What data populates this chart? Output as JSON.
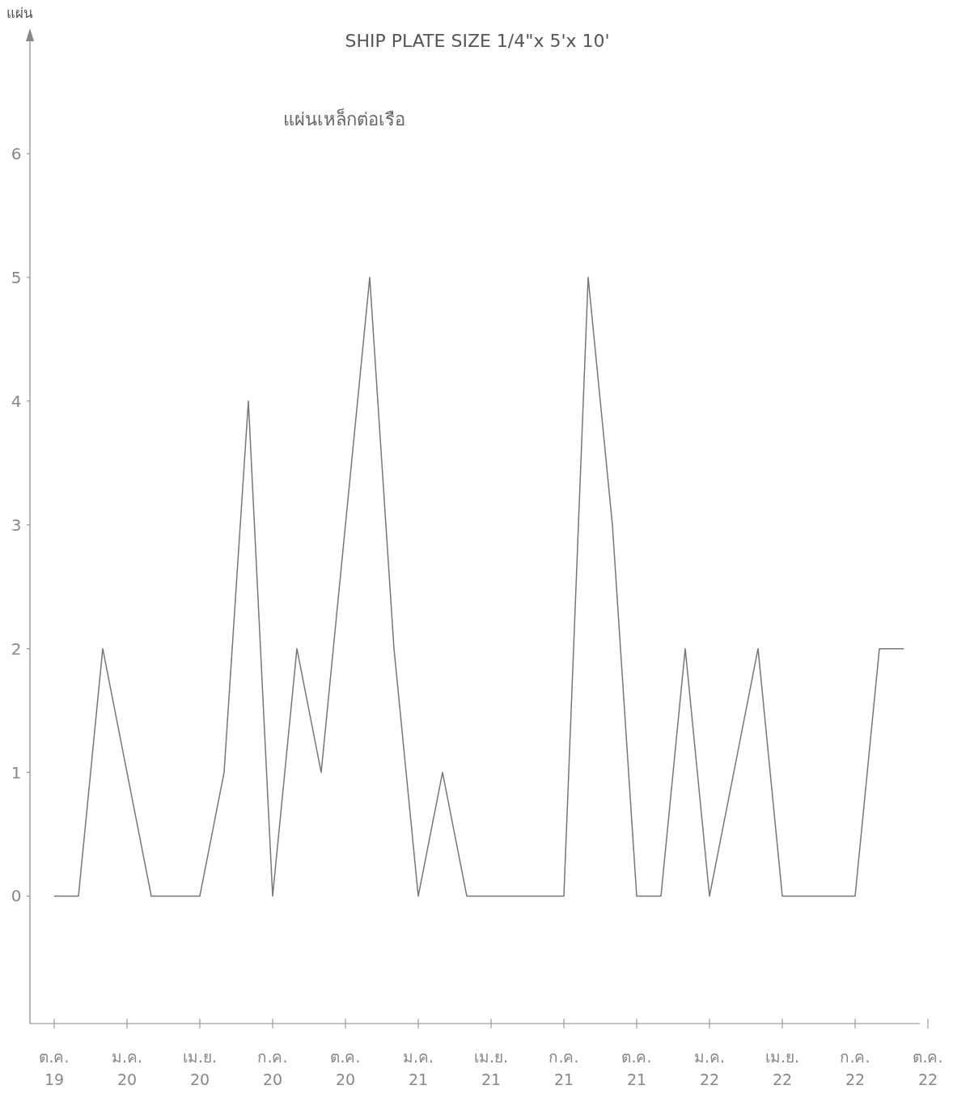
{
  "chart_data": {
    "type": "line",
    "title": "SHIP PLATE SIZE 1/4\"x 5'x 10'",
    "subtitle": "แผ่นเหล็กต่อเรือ",
    "ylabel": "แผ่น",
    "categories": [
      "ต.ค.\n19",
      null,
      null,
      "ม.ค.\n20",
      null,
      null,
      "เม.ย.\n20",
      null,
      null,
      "ก.ค.\n20",
      null,
      null,
      "ต.ค.\n20",
      null,
      null,
      "ม.ค.\n21",
      null,
      null,
      "เม.ย.\n21",
      null,
      null,
      "ก.ค.\n21",
      null,
      null,
      "ต.ค.\n21",
      null,
      null,
      "ม.ค.\n22",
      null,
      null,
      "เม.ย.\n22",
      null,
      null,
      "ก.ค.\n22",
      null,
      null,
      "ต.ค.\n22"
    ],
    "values": [
      0,
      0,
      2,
      1,
      0,
      0,
      0,
      1,
      4,
      0,
      2,
      1,
      3,
      5,
      2,
      0,
      1,
      0,
      0,
      0,
      0,
      0,
      5,
      3,
      0,
      0,
      2,
      0,
      1,
      2,
      0,
      0,
      0,
      0,
      2,
      2,
      null
    ],
    "color": "#777777",
    "ylim": [
      -1.03,
      7
    ],
    "yticks": [
      0,
      1,
      2,
      3,
      4,
      5,
      6
    ]
  }
}
